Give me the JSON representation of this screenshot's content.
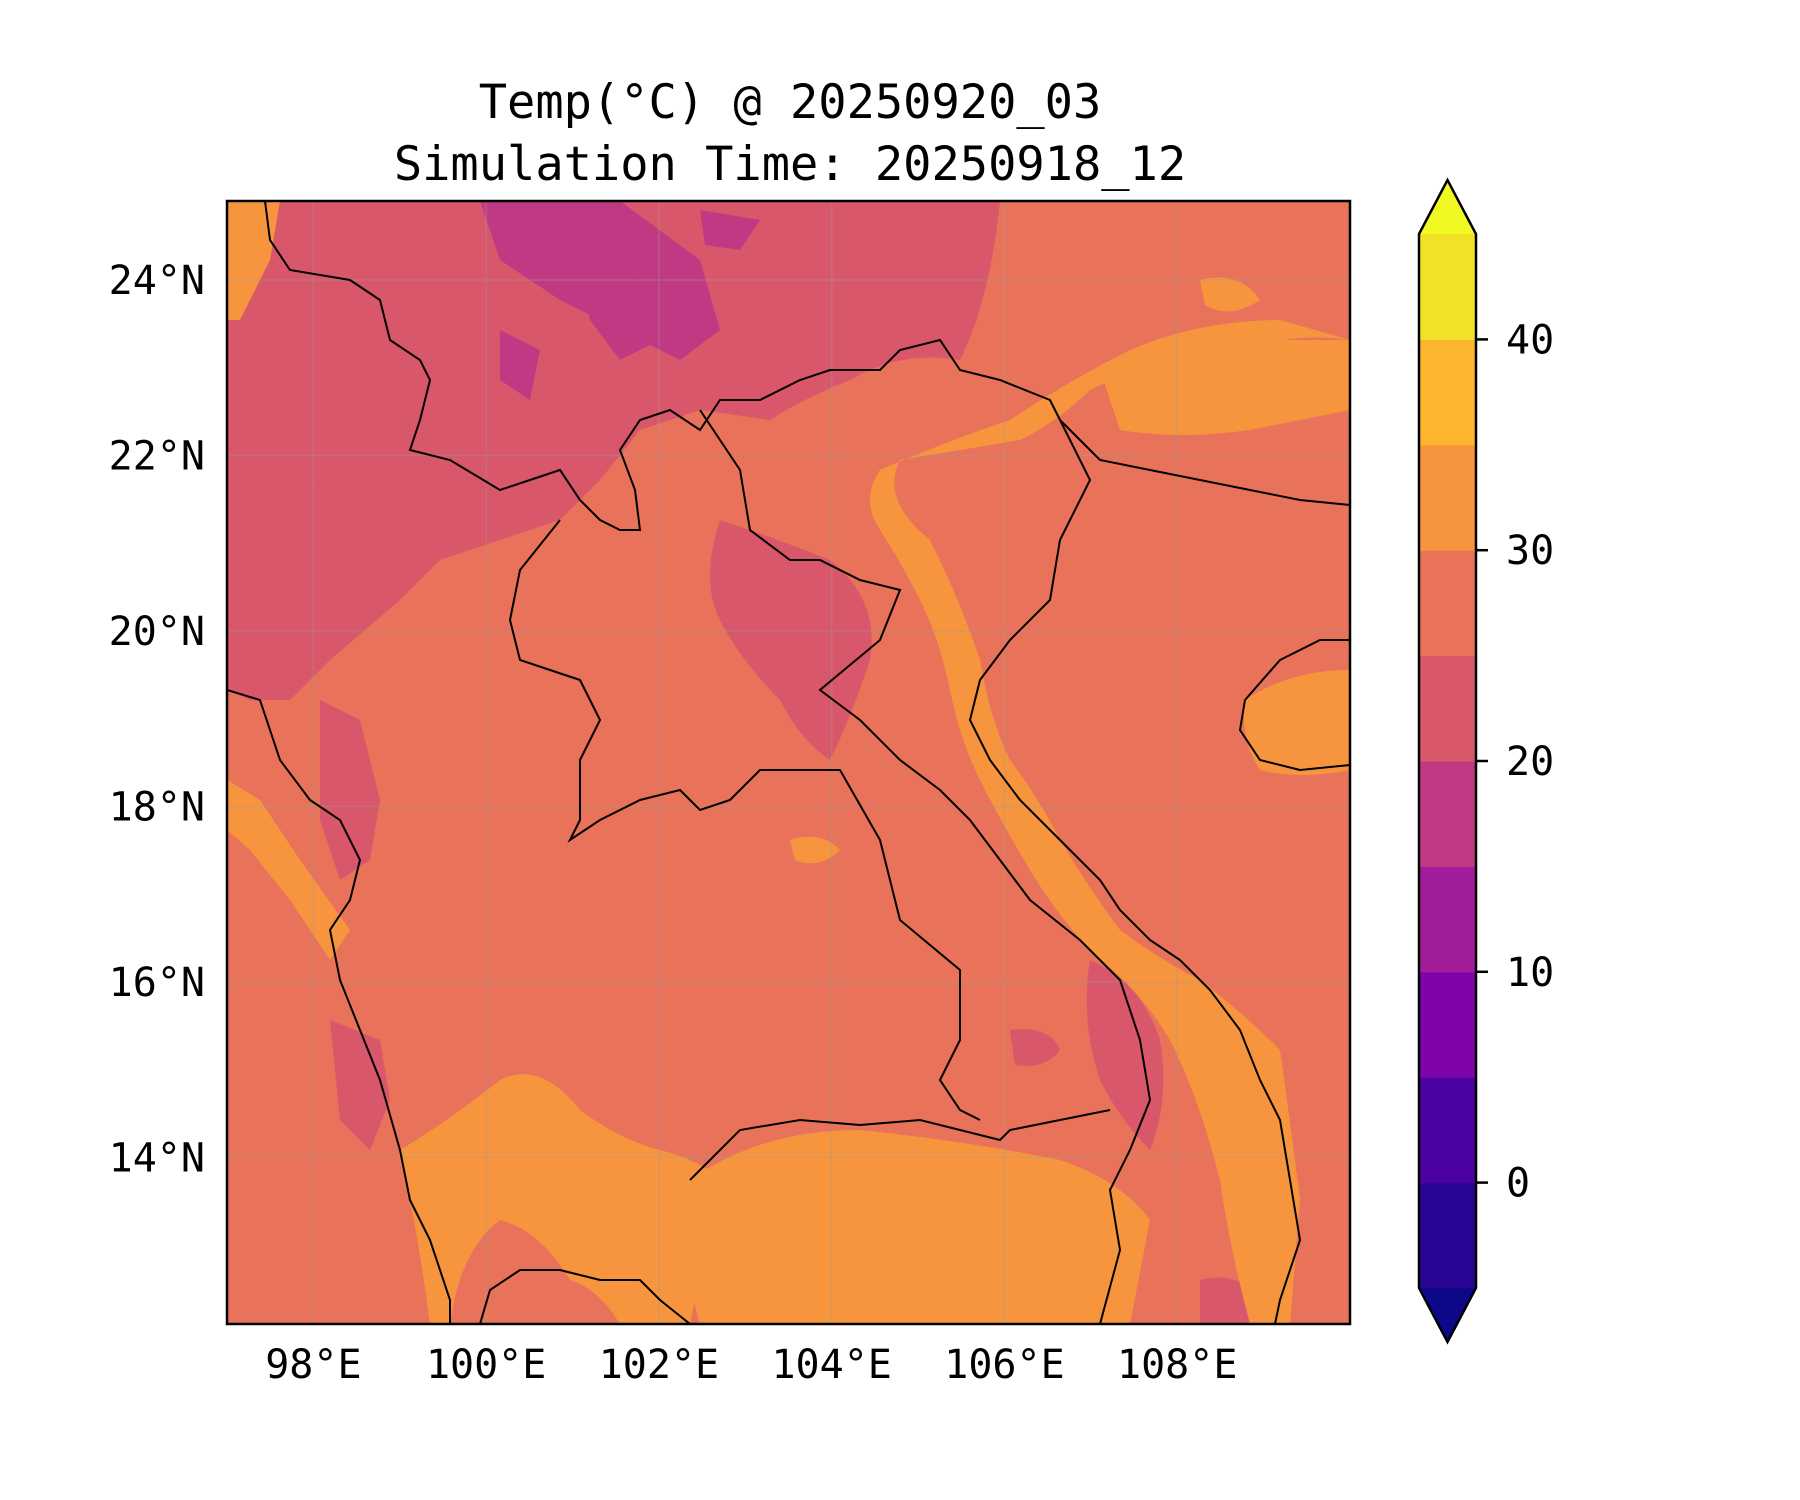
{
  "title": "Temp(°C) @ 20250920_03",
  "subtitle": "Simulation Time: 20250918_12",
  "map": {
    "lon_range": [
      97,
      110
    ],
    "lat_range": [
      12.1,
      24.9
    ],
    "lon_ticks": [
      {
        "value": 98,
        "label": "98°E"
      },
      {
        "value": 100,
        "label": "100°E"
      },
      {
        "value": 102,
        "label": "102°E"
      },
      {
        "value": 104,
        "label": "104°E"
      },
      {
        "value": 106,
        "label": "106°E"
      },
      {
        "value": 108,
        "label": "108°E"
      }
    ],
    "lat_ticks": [
      {
        "value": 24,
        "label": "24°N"
      },
      {
        "value": 22,
        "label": "22°N"
      },
      {
        "value": 20,
        "label": "20°N"
      },
      {
        "value": 18,
        "label": "18°N"
      },
      {
        "value": 16,
        "label": "16°N"
      },
      {
        "value": 14,
        "label": "14°N"
      }
    ],
    "gridlines": true,
    "base_color": "#e8735a"
  },
  "colorbar": {
    "min": -5,
    "max": 45,
    "extend": "both",
    "levels": [
      {
        "from": -5,
        "to": 0,
        "color": "#2a0593"
      },
      {
        "from": 0,
        "to": 5,
        "color": "#4c02a1"
      },
      {
        "from": 5,
        "to": 10,
        "color": "#7e03a8"
      },
      {
        "from": 10,
        "to": 15,
        "color": "#a21d9a"
      },
      {
        "from": 15,
        "to": 20,
        "color": "#c03a83"
      },
      {
        "from": 20,
        "to": 25,
        "color": "#d8576b"
      },
      {
        "from": 25,
        "to": 30,
        "color": "#e8735a"
      },
      {
        "from": 30,
        "to": 35,
        "color": "#f7953f"
      },
      {
        "from": 35,
        "to": 40,
        "color": "#fdb42f"
      },
      {
        "from": 40,
        "to": 45,
        "color": "#f1e228"
      }
    ],
    "under_color": "#0d0887",
    "over_color": "#f0f921",
    "ticks": [
      {
        "value": 0,
        "label": "0"
      },
      {
        "value": 10,
        "label": "10"
      },
      {
        "value": 20,
        "label": "20"
      },
      {
        "value": 30,
        "label": "30"
      },
      {
        "value": 40,
        "label": "40"
      }
    ]
  }
}
